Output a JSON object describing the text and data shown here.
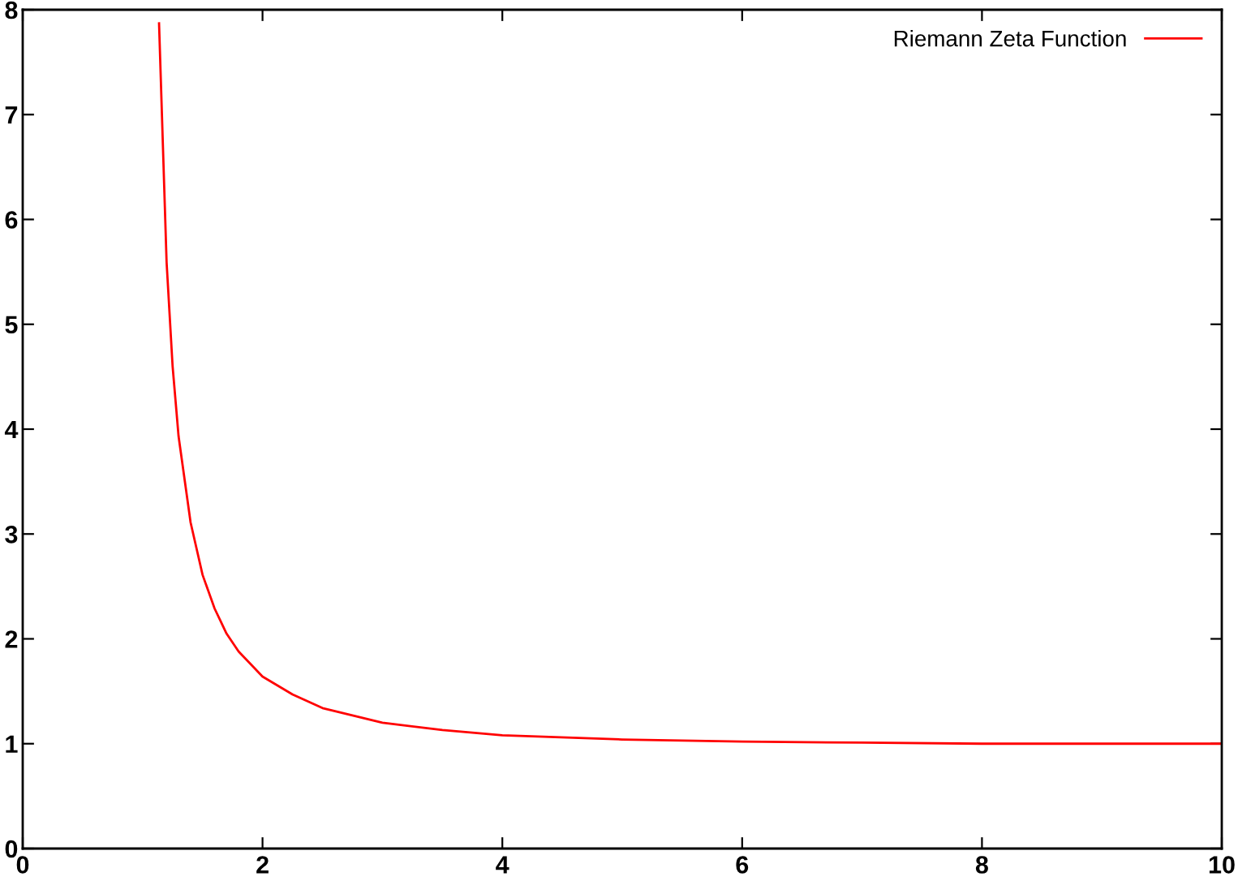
{
  "chart_data": {
    "type": "line",
    "x": [
      1.137,
      1.2,
      1.25,
      1.3,
      1.4,
      1.5,
      1.6,
      1.7,
      1.8,
      2,
      2.25,
      2.5,
      3,
      3.5,
      4,
      5,
      6,
      7,
      8,
      10
    ],
    "series": [
      {
        "name": "Riemann Zeta Function",
        "color": "#ff0000",
        "values": [
          7.87,
          5.59,
          4.6,
          3.93,
          3.11,
          2.61,
          2.29,
          2.05,
          1.88,
          1.64,
          1.47,
          1.34,
          1.2,
          1.13,
          1.08,
          1.04,
          1.02,
          1.01,
          1.0,
          1.0
        ]
      }
    ],
    "xlim": [
      0,
      10
    ],
    "ylim": [
      0,
      8
    ],
    "xticks": [
      0,
      2,
      4,
      6,
      8,
      10
    ],
    "yticks": [
      0,
      1,
      2,
      3,
      4,
      5,
      6,
      7,
      8
    ],
    "grid": false,
    "legend": "top right",
    "marker": "none",
    "line_style": "solid"
  }
}
